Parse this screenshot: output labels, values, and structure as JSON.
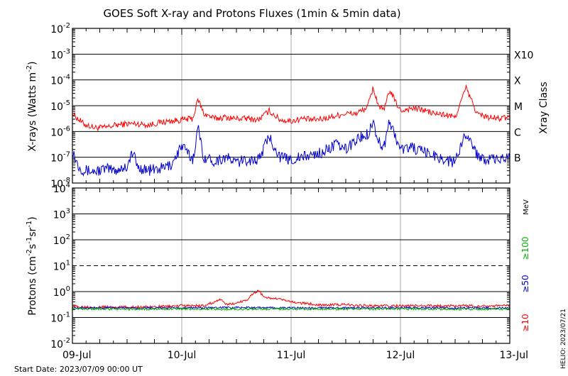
{
  "title": "GOES Soft X-ray and Protons Fluxes   (1min & 5min data)",
  "footer_left": "Start Date: 2023/07/09 00:00 UT",
  "footer_right": "HELIO: 2023/07/21",
  "colors": {
    "red": "#ff0000",
    "blue": "#0000cc",
    "green": "#00b000",
    "grid": "#000000",
    "vgrid": "#aaaaaa"
  },
  "chart_data": [
    {
      "type": "line",
      "name": "xray-panel",
      "ylabel_main": "X-rays (Watts m",
      "ylabel_sup": "-2",
      "ylabel_end": ")",
      "yscale": "log",
      "ylim_exp": [
        -8,
        -2
      ],
      "ytick_exponents": [
        "-8",
        "-7",
        "-6",
        "-5",
        "-4",
        "-3",
        "-2"
      ],
      "x_categories": [
        "09-Jul",
        "10-Jul",
        "11-Jul",
        "12-Jul",
        "13-Jul"
      ],
      "right_axis_label": "Xray Class",
      "class_labels": [
        {
          "label": "B",
          "exp": -7
        },
        {
          "label": "C",
          "exp": -6
        },
        {
          "label": "M",
          "exp": -5
        },
        {
          "label": "X",
          "exp": -4
        },
        {
          "label": "X10",
          "exp": -3
        }
      ],
      "series": [
        {
          "color": "#ff0000",
          "x_days": [
            0,
            0.1,
            0.2,
            0.3,
            0.4,
            0.5,
            0.6,
            0.7,
            0.8,
            0.9,
            1.0,
            1.1,
            1.15,
            1.2,
            1.3,
            1.4,
            1.5,
            1.6,
            1.7,
            1.8,
            1.9,
            2.0,
            2.1,
            2.2,
            2.3,
            2.4,
            2.5,
            2.6,
            2.7,
            2.75,
            2.8,
            2.85,
            2.9,
            3.0,
            3.1,
            3.2,
            3.3,
            3.4,
            3.5,
            3.6,
            3.7,
            3.8,
            3.9,
            4.0
          ],
          "log_y": [
            -5.3,
            -5.7,
            -5.85,
            -5.85,
            -5.75,
            -5.7,
            -5.7,
            -5.75,
            -5.65,
            -5.6,
            -5.55,
            -5.5,
            -4.75,
            -5.3,
            -5.5,
            -5.45,
            -5.5,
            -5.5,
            -5.55,
            -5.2,
            -5.55,
            -5.6,
            -5.5,
            -5.55,
            -5.5,
            -5.4,
            -5.3,
            -5.3,
            -5.05,
            -4.3,
            -5.0,
            -5.2,
            -4.4,
            -5.2,
            -5.1,
            -5.15,
            -5.3,
            -5.35,
            -5.45,
            -4.3,
            -5.3,
            -5.45,
            -5.5,
            -5.45
          ]
        },
        {
          "color": "#0000cc",
          "x_days": [
            0,
            0.05,
            0.1,
            0.2,
            0.3,
            0.4,
            0.5,
            0.55,
            0.6,
            0.7,
            0.8,
            0.9,
            1.0,
            1.1,
            1.15,
            1.2,
            1.3,
            1.4,
            1.5,
            1.6,
            1.7,
            1.8,
            1.9,
            2.0,
            2.1,
            2.2,
            2.3,
            2.4,
            2.5,
            2.6,
            2.7,
            2.75,
            2.8,
            2.85,
            2.9,
            3.0,
            3.1,
            3.2,
            3.3,
            3.4,
            3.5,
            3.6,
            3.7,
            3.8,
            3.9,
            4.0
          ],
          "log_y": [
            -6.7,
            -7.3,
            -7.5,
            -7.55,
            -7.45,
            -7.5,
            -7.35,
            -6.8,
            -7.4,
            -7.5,
            -7.45,
            -7.3,
            -6.55,
            -7.1,
            -5.85,
            -7.0,
            -7.15,
            -7.0,
            -7.2,
            -7.1,
            -7.1,
            -6.2,
            -7.0,
            -7.1,
            -7.0,
            -6.9,
            -6.8,
            -6.5,
            -6.7,
            -6.3,
            -6.1,
            -5.6,
            -6.4,
            -6.6,
            -5.6,
            -6.7,
            -6.6,
            -6.8,
            -6.9,
            -7.1,
            -7.2,
            -6.0,
            -6.9,
            -7.1,
            -7.1,
            -7.0
          ]
        }
      ]
    },
    {
      "type": "line",
      "name": "proton-panel",
      "ylabel_main": "Protons (cm",
      "yscale": "log",
      "ylim_exp": [
        -2,
        4
      ],
      "ytick_exponents": [
        "-2",
        "-1",
        "0",
        "1",
        "2",
        "3",
        "4"
      ],
      "threshold_exp": 1,
      "x_categories": [
        "09-Jul",
        "10-Jul",
        "11-Jul",
        "12-Jul",
        "13-Jul"
      ],
      "energy_unit": "MeV",
      "energy_labels": [
        {
          "label": "≥100",
          "color": "#00b000"
        },
        {
          "label": "≥50",
          "color": "#0000cc"
        },
        {
          "label": "≥10",
          "color": "#ff0000"
        }
      ],
      "series": [
        {
          "name": "≥10",
          "color": "#ff0000",
          "x_days": [
            0,
            0.3,
            0.5,
            0.8,
            1.0,
            1.2,
            1.3,
            1.35,
            1.4,
            1.5,
            1.6,
            1.65,
            1.7,
            1.75,
            1.8,
            1.9,
            2.0,
            2.1,
            2.3,
            2.5,
            2.7,
            3.0,
            3.3,
            3.6,
            4.0
          ],
          "log_y": [
            -0.58,
            -0.6,
            -0.6,
            -0.58,
            -0.55,
            -0.55,
            -0.4,
            -0.3,
            -0.5,
            -0.45,
            -0.3,
            -0.1,
            0.05,
            -0.2,
            -0.25,
            -0.3,
            -0.4,
            -0.45,
            -0.52,
            -0.5,
            -0.55,
            -0.55,
            -0.55,
            -0.55,
            -0.55
          ]
        },
        {
          "name": "≥50",
          "color": "#0000cc",
          "x_days": [
            0,
            0.5,
            1.0,
            1.5,
            2.0,
            2.5,
            3.0,
            3.5,
            4.0
          ],
          "log_y": [
            -0.62,
            -0.63,
            -0.63,
            -0.62,
            -0.63,
            -0.63,
            -0.63,
            -0.63,
            -0.63
          ]
        },
        {
          "name": "≥100",
          "color": "#00b000",
          "x_days": [
            0,
            0.5,
            1.0,
            1.5,
            2.0,
            2.5,
            3.0,
            3.5,
            4.0
          ],
          "log_y": [
            -0.66,
            -0.68,
            -0.67,
            -0.68,
            -0.67,
            -0.68,
            -0.67,
            -0.68,
            -0.68
          ]
        }
      ]
    }
  ]
}
